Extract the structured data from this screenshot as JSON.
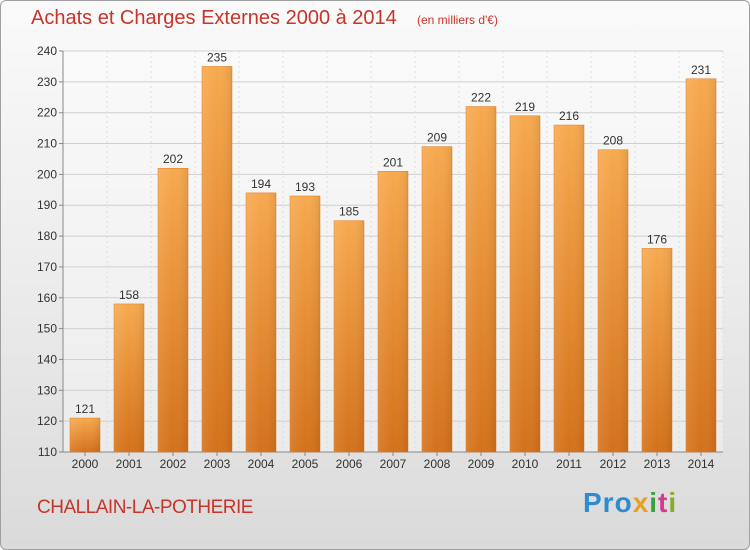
{
  "chart_data": {
    "type": "bar",
    "title": "Achats et Charges Externes 2000 à 2014",
    "subtitle": "(en milliers d'€)",
    "categories": [
      "2000",
      "2001",
      "2002",
      "2003",
      "2004",
      "2005",
      "2006",
      "2007",
      "2008",
      "2009",
      "2010",
      "2011",
      "2012",
      "2013",
      "2014"
    ],
    "values": [
      121,
      158,
      202,
      235,
      194,
      193,
      185,
      201,
      209,
      222,
      219,
      216,
      208,
      176,
      231
    ],
    "ylim": [
      110,
      240
    ],
    "yticks": [
      110,
      120,
      130,
      140,
      150,
      160,
      170,
      180,
      190,
      200,
      210,
      220,
      230,
      240
    ],
    "grid": true,
    "bar_color": "#f29a3c",
    "bar_edge_color": "#e07b20"
  },
  "footer": {
    "commune": "CHALLAIN-LA-POTHERIE",
    "logo_parts": [
      "Pro",
      "x",
      "i",
      "t",
      "i"
    ]
  },
  "colors": {
    "title": "#c8342a",
    "axis_text": "#333333",
    "grid": "#d0d0d0"
  }
}
